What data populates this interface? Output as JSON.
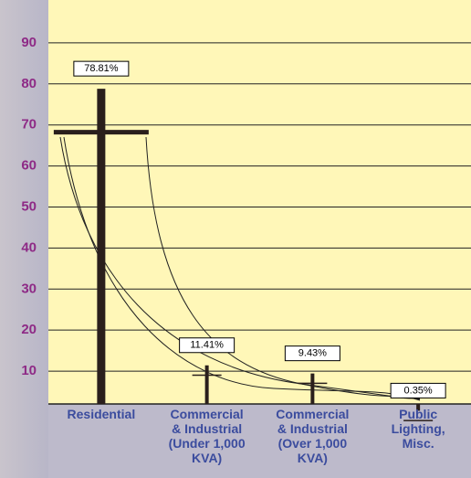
{
  "chart_data": {
    "type": "bar",
    "categories": [
      "Residential",
      "Commercial\n& Industrial\n(Under 1,000\nKVA)",
      "Commercial\n& Industrial\n(Over 1,000\nKVA)",
      "Public\nLighting,\nMisc."
    ],
    "values": [
      78.81,
      11.41,
      9.43,
      0.35
    ],
    "value_labels": [
      "78.81%",
      "11.41%",
      "9.43%",
      "0.35%"
    ],
    "color": "#2a1f1c",
    "ylim": [
      2,
      100
    ],
    "yticks": [
      10,
      20,
      30,
      40,
      50,
      60,
      70,
      80,
      90
    ],
    "grid": true
  }
}
